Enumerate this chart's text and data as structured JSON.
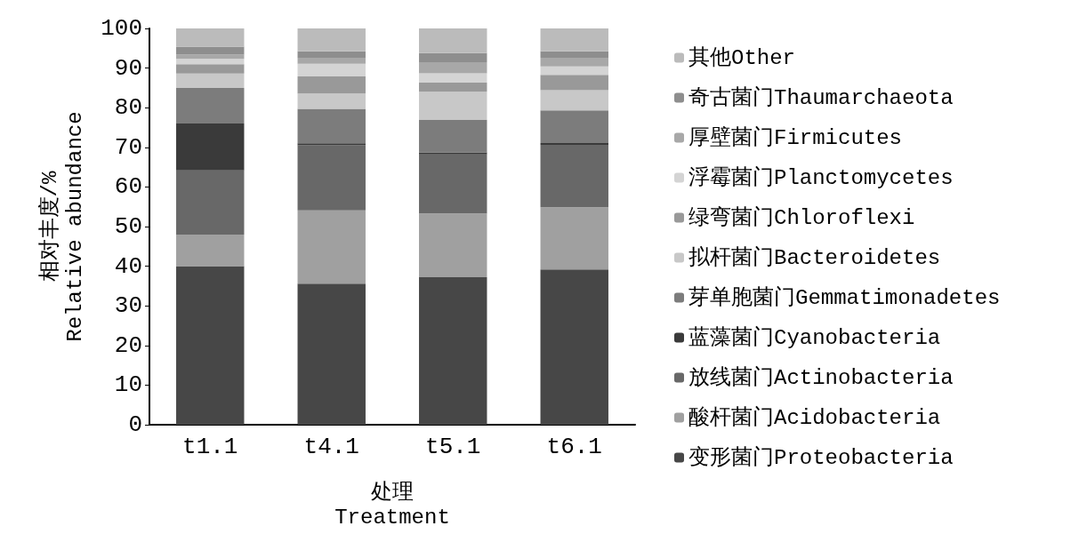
{
  "chart_data": {
    "type": "bar",
    "stacked": true,
    "xlabel": "处理\nTreatment",
    "ylabel": "相对丰度/%\nRelative abundance",
    "categories": [
      "t1.1",
      "t4.1",
      "t5.1",
      "t6.1"
    ],
    "ylim": [
      0,
      100
    ],
    "yticks": [
      0,
      10,
      20,
      30,
      40,
      50,
      60,
      70,
      80,
      90,
      100
    ],
    "grid": false,
    "legend": "right",
    "series": [
      {
        "name": "变形菌门Proteobacteria",
        "color": "#474747",
        "values": [
          40,
          35.6,
          37.2,
          39.2
        ]
      },
      {
        "name": "酸杆菌门Acidobacteria",
        "color": "#a0a0a0",
        "values": [
          8,
          18.5,
          16.1,
          15.7
        ]
      },
      {
        "name": "放线菌门Actinobacteria",
        "color": "#686868",
        "values": [
          16.2,
          16.4,
          14.9,
          15.7
        ]
      },
      {
        "name": "蓝藻菌门Cyanobacteria",
        "color": "#3a3a3a",
        "values": [
          11.8,
          0.5,
          0.5,
          0.5
        ]
      },
      {
        "name": "芽单胞菌门Gemmatimonadetes",
        "color": "#7c7c7c",
        "values": [
          9,
          8.7,
          8.2,
          8.2
        ]
      },
      {
        "name": "拟杆菌门Bacteroidetes",
        "color": "#c8c8c8",
        "values": [
          3.6,
          3.9,
          7.1,
          5.1
        ]
      },
      {
        "name": "绿弯菌门Chloroflexi",
        "color": "#999999",
        "values": [
          2.4,
          4.3,
          2.3,
          3.9
        ]
      },
      {
        "name": "浮霉菌门Planctomycetes",
        "color": "#d4d4d4",
        "values": [
          1.3,
          3.2,
          2.4,
          2.1
        ]
      },
      {
        "name": "厚壁菌门Firmicutes",
        "color": "#a8a8a8",
        "values": [
          1.1,
          1.5,
          2.8,
          2.2
        ]
      },
      {
        "name": "奇古菌门Thaumarchaeota",
        "color": "#8e8e8e",
        "values": [
          2,
          1.6,
          2.3,
          1.6
        ]
      },
      {
        "name": "其他Other",
        "color": "#bbbbbb",
        "values": [
          4.6,
          5.8,
          6.2,
          5.8
        ]
      }
    ]
  }
}
